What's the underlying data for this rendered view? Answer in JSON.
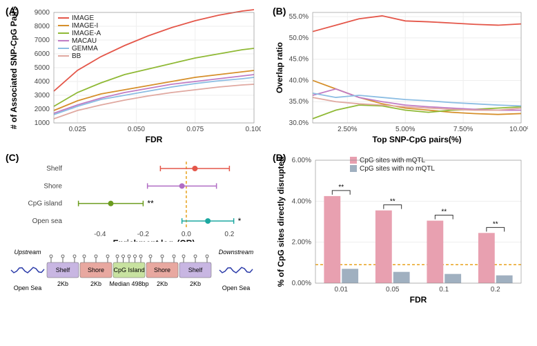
{
  "panelA": {
    "label": "(A)",
    "type": "line",
    "xlabel": "FDR",
    "ylabel": "# of Associated SNP-CpG Pairs",
    "xlim": [
      0.015,
      0.1
    ],
    "xticks": [
      0.025,
      0.05,
      0.075,
      0.1
    ],
    "ylim": [
      1000,
      9000
    ],
    "yticks": [
      1000,
      2000,
      3000,
      4000,
      5000,
      6000,
      7000,
      8000,
      9000
    ],
    "series": [
      {
        "name": "IMAGE",
        "color": "#e45649",
        "x": [
          0.015,
          0.025,
          0.035,
          0.045,
          0.055,
          0.065,
          0.075,
          0.085,
          0.095,
          0.1
        ],
        "y": [
          3300,
          4800,
          5800,
          6600,
          7300,
          7900,
          8400,
          8800,
          9100,
          9200
        ]
      },
      {
        "name": "IMAGE-I",
        "color": "#d68f2a",
        "x": [
          0.015,
          0.025,
          0.035,
          0.045,
          0.055,
          0.065,
          0.075,
          0.085,
          0.095,
          0.1
        ],
        "y": [
          1900,
          2600,
          3100,
          3400,
          3700,
          4000,
          4300,
          4500,
          4700,
          4800
        ]
      },
      {
        "name": "IMAGE-A",
        "color": "#8fb935",
        "x": [
          0.015,
          0.025,
          0.035,
          0.045,
          0.055,
          0.065,
          0.075,
          0.085,
          0.095,
          0.1
        ],
        "y": [
          2200,
          3200,
          3900,
          4500,
          4900,
          5300,
          5700,
          6000,
          6300,
          6400
        ]
      },
      {
        "name": "MACAU",
        "color": "#c07cc4",
        "x": [
          0.015,
          0.025,
          0.035,
          0.045,
          0.055,
          0.065,
          0.075,
          0.085,
          0.095,
          0.1
        ],
        "y": [
          1700,
          2300,
          2800,
          3200,
          3500,
          3800,
          4000,
          4200,
          4400,
          4500
        ]
      },
      {
        "name": "GEMMA",
        "color": "#8bbde3",
        "x": [
          0.015,
          0.025,
          0.035,
          0.045,
          0.055,
          0.065,
          0.075,
          0.085,
          0.095,
          0.1
        ],
        "y": [
          1600,
          2200,
          2700,
          3000,
          3300,
          3600,
          3850,
          4050,
          4200,
          4300
        ]
      },
      {
        "name": "BB",
        "color": "#e0a8a0",
        "x": [
          0.015,
          0.025,
          0.035,
          0.045,
          0.055,
          0.065,
          0.075,
          0.085,
          0.095,
          0.1
        ],
        "y": [
          1300,
          1900,
          2300,
          2650,
          2950,
          3200,
          3400,
          3600,
          3750,
          3800
        ]
      }
    ]
  },
  "panelB": {
    "label": "(B)",
    "type": "line",
    "xlabel": "Top SNP-CpG pairs(%)",
    "ylabel": "Overlap ratio",
    "xlim": [
      1.0,
      10.0
    ],
    "xticks": [
      2.5,
      5.0,
      7.5,
      10.0
    ],
    "xtick_labels": [
      "2.50%",
      "5.00%",
      "7.50%",
      "10.00%"
    ],
    "ylim": [
      30,
      56
    ],
    "yticks": [
      30,
      35,
      40,
      45,
      50,
      55
    ],
    "ytick_labels": [
      "30.0%",
      "35.0%",
      "40.0%",
      "45.0%",
      "50.0%",
      "55.0%"
    ],
    "series": [
      {
        "name": "IMAGE",
        "color": "#e45649",
        "x": [
          1,
          2,
          3,
          4,
          5,
          6,
          7,
          8,
          9,
          10
        ],
        "y": [
          51.5,
          53.0,
          54.5,
          55.2,
          54.0,
          53.8,
          53.5,
          53.2,
          53.0,
          53.3
        ]
      },
      {
        "name": "IMAGE-I",
        "color": "#d68f2a",
        "x": [
          1,
          2,
          3,
          4,
          5,
          6,
          7,
          8,
          9,
          10
        ],
        "y": [
          40.0,
          38.0,
          36.0,
          34.5,
          33.5,
          33.0,
          32.5,
          32.2,
          32.0,
          32.2
        ]
      },
      {
        "name": "IMAGE-A",
        "color": "#8fb935",
        "x": [
          1,
          2,
          3,
          4,
          5,
          6,
          7,
          8,
          9,
          10
        ],
        "y": [
          31.0,
          33.0,
          34.2,
          34.0,
          33.0,
          32.5,
          33.0,
          33.2,
          33.5,
          33.8
        ]
      },
      {
        "name": "MACAU",
        "color": "#c07cc4",
        "x": [
          1,
          2,
          3,
          4,
          5,
          6,
          7,
          8,
          9,
          10
        ],
        "y": [
          36.5,
          38.0,
          36.0,
          35.0,
          34.2,
          33.8,
          33.5,
          33.2,
          33.0,
          33.0
        ]
      },
      {
        "name": "GEMMA",
        "color": "#8bbde3",
        "x": [
          1,
          2,
          3,
          4,
          5,
          6,
          7,
          8,
          9,
          10
        ],
        "y": [
          37.0,
          36.0,
          36.5,
          36.0,
          35.5,
          35.2,
          34.8,
          34.5,
          34.2,
          34.0
        ]
      },
      {
        "name": "BB",
        "color": "#e0a8a0",
        "x": [
          1,
          2,
          3,
          4,
          5,
          6,
          7,
          8,
          9,
          10
        ],
        "y": [
          36.0,
          35.0,
          34.5,
          34.2,
          33.8,
          33.5,
          33.2,
          33.0,
          33.0,
          33.5
        ]
      }
    ]
  },
  "panelC": {
    "label": "(C)",
    "type": "errorbar-dot",
    "xlabel": "Enrichment log₂(OR)",
    "xlim": [
      -0.55,
      0.25
    ],
    "xticks": [
      -0.4,
      -0.2,
      0.0,
      0.2
    ],
    "categories": [
      {
        "name": "Shelf",
        "color": "#e45649",
        "est": 0.04,
        "lo": -0.12,
        "hi": 0.2,
        "sig": ""
      },
      {
        "name": "Shore",
        "color": "#b06cc4",
        "est": -0.02,
        "lo": -0.18,
        "hi": 0.14,
        "sig": ""
      },
      {
        "name": "CpG island",
        "color": "#6b9c1e",
        "est": -0.35,
        "lo": -0.5,
        "hi": -0.2,
        "sig": "**"
      },
      {
        "name": "Open sea",
        "color": "#1ca8a0",
        "est": 0.1,
        "lo": -0.02,
        "hi": 0.22,
        "sig": "*"
      }
    ],
    "ref_color": "#e8a21c",
    "diagram": {
      "boxes": [
        {
          "label": "Shelf",
          "color": "#c8b6e2",
          "sub": "2Kb"
        },
        {
          "label": "Shore",
          "color": "#e8a8a0",
          "sub": "2Kb"
        },
        {
          "label": "CpG Island",
          "color": "#c8e2a0",
          "sub": "Median 498bp"
        },
        {
          "label": "Shore",
          "color": "#e8a8a0",
          "sub": "2Kb"
        },
        {
          "label": "Shelf",
          "color": "#c8b6e2",
          "sub": "2Kb"
        }
      ],
      "upstream": "Upstream",
      "downstream": "Downstream",
      "opensea": "Open Sea",
      "wave_color": "#2a3aa8"
    }
  },
  "panelD": {
    "label": "(D)",
    "type": "grouped-bar",
    "xlabel": "FDR",
    "ylabel": "% of CpG sites directly disrupted",
    "ylim": [
      0,
      6
    ],
    "yticks": [
      0,
      2,
      4,
      6
    ],
    "ytick_labels": [
      "0.00%",
      "2.00%",
      "4.00%",
      "6.00%"
    ],
    "categories": [
      "0.01",
      "0.05",
      "0.1",
      "0.2"
    ],
    "groups": [
      {
        "name": "CpG sites with mQTL",
        "color": "#e8a0b0",
        "values": [
          4.25,
          3.55,
          3.05,
          2.45
        ]
      },
      {
        "name": "CpG sites with no mQTL",
        "color": "#a0b0c0",
        "values": [
          0.7,
          0.55,
          0.45,
          0.38
        ]
      }
    ],
    "ref_line": 0.9,
    "ref_color": "#e8a21c",
    "sig_marks": [
      "**",
      "**",
      "**",
      "**"
    ]
  }
}
